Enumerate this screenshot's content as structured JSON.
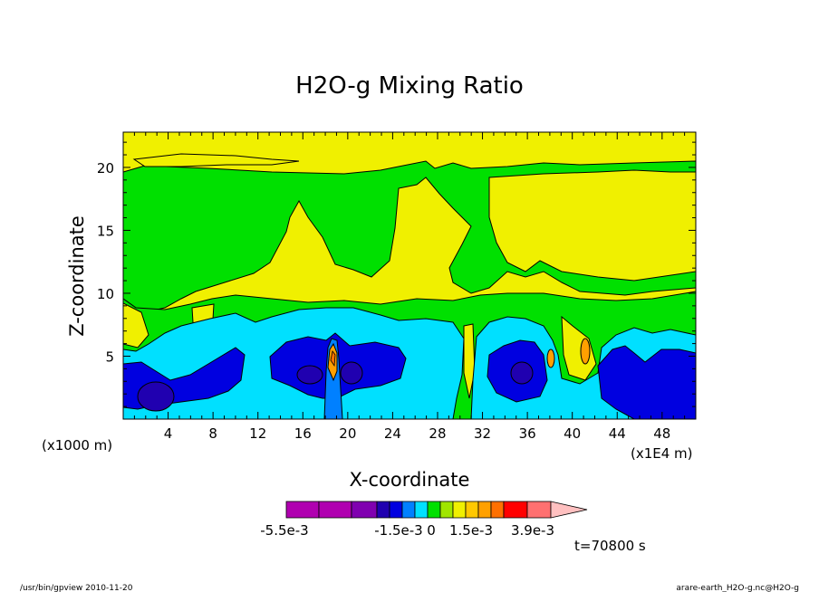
{
  "chart_data": {
    "type": "heatmap",
    "title": "H2O-g Mixing Ratio",
    "xlabel": "X-coordinate",
    "ylabel": "Z-coordinate",
    "x_unit_left": "(x1000 m)",
    "x_unit_right": "(x1E4 m)",
    "xlim": [
      0,
      51
    ],
    "ylim": [
      0,
      22.8
    ],
    "x_ticks": [
      4,
      8,
      12,
      16,
      20,
      24,
      28,
      32,
      36,
      40,
      44,
      48
    ],
    "y_ticks": [
      5,
      10,
      15,
      20
    ],
    "time_label": "t=70800 s",
    "colorbar": {
      "colors": [
        "#b000b0",
        "#b000b0",
        "#8000b0",
        "#2000b0",
        "#0000e0",
        "#0080ff",
        "#00e0ff",
        "#00e000",
        "#a0e600",
        "#f0f000",
        "#ffc800",
        "#ffa000",
        "#ff7000",
        "#ff0000",
        "#ff7070",
        "#ffc0c0"
      ],
      "labels": [
        "-5.5e-3",
        "-1.5e-3",
        "0",
        "1.5e-3",
        "3.9e-3"
      ]
    },
    "regions": [
      {
        "name": "yellow-level",
        "color": "#f0f000"
      },
      {
        "name": "green-level",
        "color": "#00e000"
      },
      {
        "name": "cyan-level",
        "color": "#00e0ff"
      },
      {
        "name": "blue-level",
        "color": "#0000e0"
      },
      {
        "name": "dark-blue-level",
        "color": "#2000b0"
      },
      {
        "name": "orange-level",
        "color": "#ffa000"
      }
    ]
  },
  "footer": {
    "left": "/usr/bin/gpview   2010-11-20",
    "right": "arare-earth_H2O-g.nc@H2O-g"
  }
}
